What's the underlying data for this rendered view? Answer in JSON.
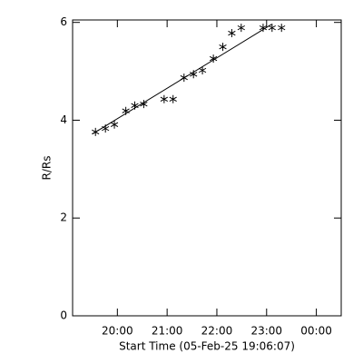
{
  "chart_data": {
    "type": "scatter",
    "xlabel": "Start Time (05-Feb-25 19:06:07)",
    "ylabel": "R/Rs",
    "xlim": [
      19.1,
      24.5
    ],
    "ylim": [
      0,
      6.05
    ],
    "xticks": [
      {
        "value": 20,
        "label": "20:00"
      },
      {
        "value": 21,
        "label": "21:00"
      },
      {
        "value": 22,
        "label": "22:00"
      },
      {
        "value": 23,
        "label": "23:00"
      },
      {
        "value": 24,
        "label": "00:00"
      }
    ],
    "yticks": [
      0,
      2,
      4,
      6
    ],
    "series": [
      {
        "style": "asterisk",
        "color": "#000000",
        "x": [
          19.56,
          19.76,
          19.94,
          20.17,
          20.35,
          20.53,
          20.94,
          21.12,
          21.34,
          21.53,
          21.71,
          21.93,
          22.12,
          22.3,
          22.49,
          22.93,
          23.11,
          23.3
        ],
        "values": [
          3.76,
          3.83,
          3.91,
          4.19,
          4.3,
          4.33,
          4.43,
          4.43,
          4.87,
          4.94,
          5.02,
          5.26,
          5.5,
          5.78,
          5.89,
          5.89,
          5.89,
          5.89
        ]
      },
      {
        "style": "line",
        "color": "#000000",
        "x": [
          19.5,
          23.1
        ],
        "values": [
          3.72,
          5.96
        ]
      }
    ]
  }
}
